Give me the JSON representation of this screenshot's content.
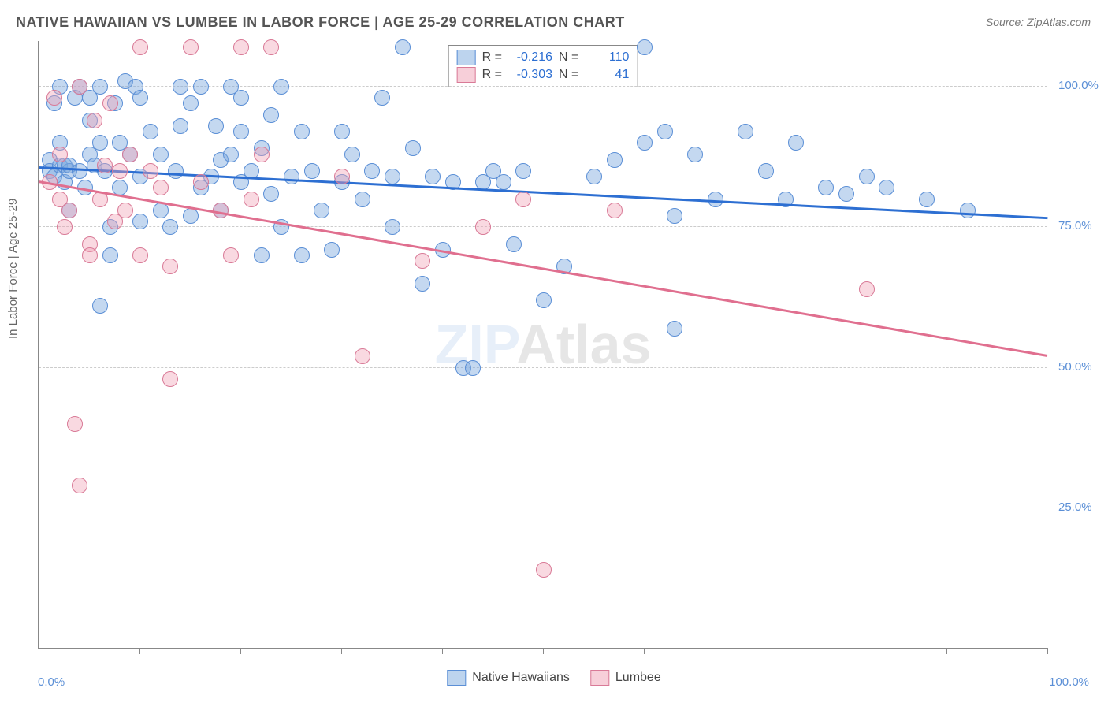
{
  "title": "NATIVE HAWAIIAN VS LUMBEE IN LABOR FORCE | AGE 25-29 CORRELATION CHART",
  "source": "Source: ZipAtlas.com",
  "ylabel": "In Labor Force | Age 25-29",
  "watermark_part1": "ZIP",
  "watermark_part2": "Atlas",
  "chart": {
    "type": "scatter",
    "xlim": [
      0,
      100
    ],
    "ylim": [
      0,
      108
    ],
    "y_ticks": [
      {
        "v": 25,
        "label": "25.0%"
      },
      {
        "v": 50,
        "label": "50.0%"
      },
      {
        "v": 75,
        "label": "75.0%"
      },
      {
        "v": 100,
        "label": "100.0%"
      }
    ],
    "x_ticks": [
      0,
      10,
      20,
      30,
      40,
      50,
      60,
      70,
      80,
      90,
      100
    ],
    "x_label_min": "0.0%",
    "x_label_max": "100.0%",
    "background_color": "#ffffff",
    "grid_color": "#cccccc",
    "marker_radius": 9,
    "marker_opacity": 0.45,
    "line_width": 3,
    "title_fontsize": 18,
    "label_fontsize": 15
  },
  "series": [
    {
      "name": "Native Hawaiians",
      "color_fill": "#7ca9de",
      "color_stroke": "#5b8fd6",
      "trend_color": "#2d6fd2",
      "R": "-0.216",
      "N": "110",
      "trend": {
        "x1": 0,
        "y1": 85.5,
        "x2": 100,
        "y2": 76.5
      },
      "points": [
        [
          1,
          87
        ],
        [
          1,
          85
        ],
        [
          1.5,
          97
        ],
        [
          1.5,
          84
        ],
        [
          2,
          86
        ],
        [
          2,
          90
        ],
        [
          2,
          100
        ],
        [
          2.5,
          86
        ],
        [
          2.5,
          83
        ],
        [
          3,
          85
        ],
        [
          3,
          86
        ],
        [
          3,
          78
        ],
        [
          3.5,
          98
        ],
        [
          4,
          85
        ],
        [
          4,
          100
        ],
        [
          4.5,
          82
        ],
        [
          5,
          94
        ],
        [
          5,
          88
        ],
        [
          5,
          98
        ],
        [
          5.5,
          86
        ],
        [
          6,
          100
        ],
        [
          6,
          90
        ],
        [
          6,
          61
        ],
        [
          6.5,
          85
        ],
        [
          7,
          75
        ],
        [
          7,
          70
        ],
        [
          7.5,
          97
        ],
        [
          8,
          82
        ],
        [
          8,
          90
        ],
        [
          8.5,
          101
        ],
        [
          9,
          88
        ],
        [
          9.5,
          100
        ],
        [
          10,
          84
        ],
        [
          10,
          98
        ],
        [
          10,
          76
        ],
        [
          11,
          92
        ],
        [
          12,
          88
        ],
        [
          12,
          78
        ],
        [
          13,
          75
        ],
        [
          13.5,
          85
        ],
        [
          14,
          100
        ],
        [
          14,
          93
        ],
        [
          15,
          77
        ],
        [
          15,
          97
        ],
        [
          16,
          100
        ],
        [
          16,
          82
        ],
        [
          17,
          84
        ],
        [
          17.5,
          93
        ],
        [
          18,
          87
        ],
        [
          18,
          78
        ],
        [
          19,
          100
        ],
        [
          19,
          88
        ],
        [
          20,
          92
        ],
        [
          20,
          98
        ],
        [
          20,
          83
        ],
        [
          21,
          85
        ],
        [
          22,
          70
        ],
        [
          22,
          89
        ],
        [
          23,
          95
        ],
        [
          23,
          81
        ],
        [
          24,
          100
        ],
        [
          24,
          75
        ],
        [
          25,
          84
        ],
        [
          26,
          70
        ],
        [
          26,
          92
        ],
        [
          27,
          85
        ],
        [
          28,
          78
        ],
        [
          29,
          71
        ],
        [
          30,
          83
        ],
        [
          30,
          92
        ],
        [
          31,
          88
        ],
        [
          32,
          80
        ],
        [
          33,
          85
        ],
        [
          34,
          98
        ],
        [
          35,
          84
        ],
        [
          35,
          75
        ],
        [
          36,
          107
        ],
        [
          37,
          89
        ],
        [
          38,
          65
        ],
        [
          39,
          84
        ],
        [
          40,
          71
        ],
        [
          41,
          83
        ],
        [
          42,
          50
        ],
        [
          43,
          50
        ],
        [
          44,
          83
        ],
        [
          45,
          85
        ],
        [
          46,
          83
        ],
        [
          47,
          72
        ],
        [
          48,
          85
        ],
        [
          50,
          62
        ],
        [
          52,
          68
        ],
        [
          55,
          84
        ],
        [
          57,
          87
        ],
        [
          60,
          107
        ],
        [
          60,
          90
        ],
        [
          62,
          92
        ],
        [
          63,
          77
        ],
        [
          63,
          57
        ],
        [
          65,
          88
        ],
        [
          67,
          80
        ],
        [
          70,
          92
        ],
        [
          72,
          85
        ],
        [
          74,
          80
        ],
        [
          75,
          90
        ],
        [
          78,
          82
        ],
        [
          80,
          81
        ],
        [
          82,
          84
        ],
        [
          84,
          82
        ],
        [
          88,
          80
        ],
        [
          92,
          78
        ]
      ]
    },
    {
      "name": "Lumbee",
      "color_fill": "#f0a0b4",
      "color_stroke": "#d97a97",
      "trend_color": "#e06f8f",
      "R": "-0.303",
      "N": "41",
      "trend": {
        "x1": 0,
        "y1": 83.0,
        "x2": 100,
        "y2": 52.0
      },
      "points": [
        [
          1,
          83
        ],
        [
          1.5,
          98
        ],
        [
          2,
          80
        ],
        [
          2,
          88
        ],
        [
          2.5,
          75
        ],
        [
          3,
          78
        ],
        [
          3.5,
          40
        ],
        [
          4,
          29
        ],
        [
          4,
          100
        ],
        [
          5,
          72
        ],
        [
          5,
          70
        ],
        [
          5.5,
          94
        ],
        [
          6,
          80
        ],
        [
          6.5,
          86
        ],
        [
          7,
          97
        ],
        [
          7.5,
          76
        ],
        [
          8,
          85
        ],
        [
          8.5,
          78
        ],
        [
          9,
          88
        ],
        [
          10,
          107
        ],
        [
          10,
          70
        ],
        [
          11,
          85
        ],
        [
          12,
          82
        ],
        [
          13,
          68
        ],
        [
          13,
          48
        ],
        [
          15,
          107
        ],
        [
          16,
          83
        ],
        [
          18,
          78
        ],
        [
          19,
          70
        ],
        [
          20,
          107
        ],
        [
          21,
          80
        ],
        [
          22,
          88
        ],
        [
          23,
          107
        ],
        [
          30,
          84
        ],
        [
          32,
          52
        ],
        [
          38,
          69
        ],
        [
          44,
          75
        ],
        [
          48,
          80
        ],
        [
          50,
          14
        ],
        [
          57,
          78
        ],
        [
          82,
          64
        ]
      ]
    }
  ],
  "legend": {
    "items": [
      {
        "label": "Native Hawaiians"
      },
      {
        "label": "Lumbee"
      }
    ]
  },
  "stats_labels": {
    "R": "R =",
    "N": "N ="
  }
}
